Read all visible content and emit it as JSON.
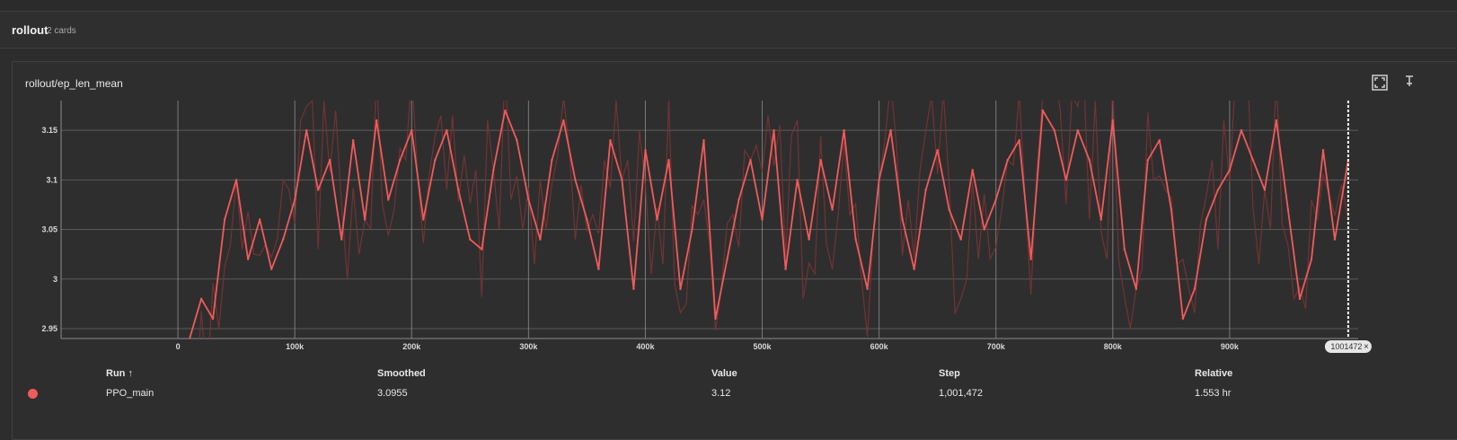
{
  "group": {
    "title": "rollout",
    "count_label": "2 cards"
  },
  "card": {
    "title": "rollout/ep_len_mean"
  },
  "icons": {
    "fullscreen": "fullscreen-icon",
    "pin": "pin-icon"
  },
  "colors": {
    "series": "#f15b5b",
    "series_raw": "#7a3434",
    "grid": "#5a5a5a",
    "background": "#2e2e2e"
  },
  "table": {
    "headers": {
      "run": "Run ↑",
      "smoothed": "Smoothed",
      "value": "Value",
      "step": "Step",
      "relative": "Relative"
    },
    "rows": [
      {
        "color": "#f15b5b",
        "run": "PPO_main",
        "smoothed": "3.0955",
        "value": "3.12",
        "step": "1,001,472",
        "relative": "1.553 hr"
      }
    ]
  },
  "cursor": {
    "step_label": "1001472",
    "close_label": "×"
  },
  "chart_data": {
    "type": "line",
    "title": "rollout/ep_len_mean",
    "xlabel": "",
    "ylabel": "",
    "xlim": [
      -100000,
      1010000
    ],
    "ylim": [
      2.94,
      3.18
    ],
    "x_ticks": [
      0,
      100000,
      200000,
      300000,
      400000,
      500000,
      600000,
      700000,
      800000,
      900000
    ],
    "x_tick_labels": [
      "0",
      "100k",
      "200k",
      "300k",
      "400k",
      "500k",
      "600k",
      "700k",
      "800k",
      "900k"
    ],
    "y_ticks": [
      2.95,
      3,
      3.05,
      3.1,
      3.15
    ],
    "y_tick_labels": [
      "2.95",
      "3",
      "3.05",
      "3.1",
      "3.15"
    ],
    "grid": true,
    "series": [
      {
        "name": "PPO_main",
        "x": [
          10000,
          20000,
          30000,
          40000,
          50000,
          60000,
          70000,
          80000,
          90000,
          100000,
          110000,
          120000,
          130000,
          140000,
          150000,
          160000,
          170000,
          180000,
          190000,
          200000,
          210000,
          220000,
          230000,
          240000,
          250000,
          260000,
          270000,
          280000,
          290000,
          300000,
          310000,
          320000,
          330000,
          340000,
          350000,
          360000,
          370000,
          380000,
          390000,
          400000,
          410000,
          420000,
          430000,
          440000,
          450000,
          460000,
          470000,
          480000,
          490000,
          500000,
          510000,
          520000,
          530000,
          540000,
          550000,
          560000,
          570000,
          580000,
          590000,
          600000,
          610000,
          620000,
          630000,
          640000,
          650000,
          660000,
          670000,
          680000,
          690000,
          700000,
          710000,
          720000,
          730000,
          740000,
          750000,
          760000,
          770000,
          780000,
          790000,
          800000,
          810000,
          820000,
          830000,
          840000,
          850000,
          860000,
          870000,
          880000,
          890000,
          900000,
          910000,
          920000,
          930000,
          940000,
          950000,
          960000,
          970000,
          980000,
          990000,
          1001472
        ],
        "values": [
          2.94,
          2.98,
          2.96,
          3.06,
          3.1,
          3.02,
          3.06,
          3.01,
          3.04,
          3.08,
          3.15,
          3.09,
          3.12,
          3.04,
          3.14,
          3.06,
          3.16,
          3.08,
          3.12,
          3.15,
          3.06,
          3.12,
          3.15,
          3.09,
          3.04,
          3.03,
          3.11,
          3.17,
          3.14,
          3.08,
          3.04,
          3.12,
          3.16,
          3.1,
          3.06,
          3.01,
          3.14,
          3.1,
          2.99,
          3.13,
          3.06,
          3.12,
          2.99,
          3.05,
          3.14,
          2.96,
          3.02,
          3.08,
          3.12,
          3.06,
          3.15,
          3.01,
          3.1,
          3.04,
          3.12,
          3.07,
          3.15,
          3.04,
          2.99,
          3.1,
          3.15,
          3.06,
          3.01,
          3.09,
          3.13,
          3.07,
          3.04,
          3.11,
          3.05,
          3.08,
          3.12,
          3.14,
          3.02,
          3.17,
          3.15,
          3.1,
          3.15,
          3.12,
          3.06,
          3.16,
          3.03,
          2.99,
          3.12,
          3.14,
          3.07,
          2.96,
          2.99,
          3.06,
          3.09,
          3.11,
          3.15,
          3.12,
          3.09,
          3.16,
          3.07,
          2.98,
          3.02,
          3.13,
          3.04,
          3.12
        ]
      }
    ]
  }
}
